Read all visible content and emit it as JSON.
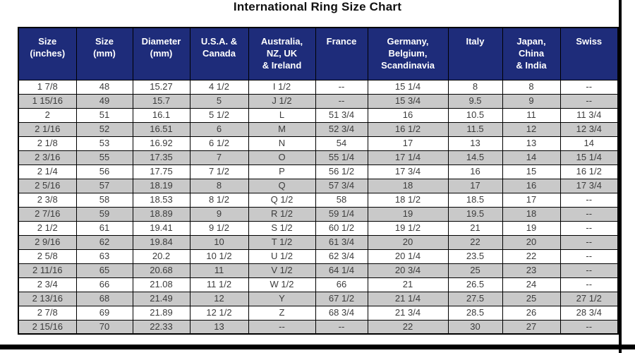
{
  "page": {
    "title": "International Ring Size Chart"
  },
  "colors": {
    "header_bg": "#1e2c7a",
    "header_text": "#ffffff",
    "row_bg": "#ffffff",
    "row_alt_bg": "#c9c9c9",
    "border": "#000000"
  },
  "chart_data": {
    "type": "table",
    "title": "International Ring Size Chart",
    "columns": [
      "Size\n(inches)",
      "Size\n(mm)",
      "Diameter\n(mm)",
      "U.S.A. &\nCanada",
      "Australia,\nNZ, UK\n& Ireland",
      "France",
      "Germany,\nBelgium,\nScandinavia",
      "Italy",
      "Japan,\nChina\n& India",
      "Swiss"
    ],
    "rows": [
      [
        "1 7/8",
        "48",
        "15.27",
        "4 1/2",
        "I 1/2",
        "--",
        "15 1/4",
        "8",
        "8",
        "--"
      ],
      [
        "1 15/16",
        "49",
        "15.7",
        "5",
        "J 1/2",
        "--",
        "15 3/4",
        "9.5",
        "9",
        "--"
      ],
      [
        "2",
        "51",
        "16.1",
        "5 1/2",
        "L",
        "51 3/4",
        "16",
        "10.5",
        "11",
        "11 3/4"
      ],
      [
        "2 1/16",
        "52",
        "16.51",
        "6",
        "M",
        "52 3/4",
        "16 1/2",
        "11.5",
        "12",
        "12 3/4"
      ],
      [
        "2 1/8",
        "53",
        "16.92",
        "6 1/2",
        "N",
        "54",
        "17",
        "13",
        "13",
        "14"
      ],
      [
        "2 3/16",
        "55",
        "17.35",
        "7",
        "O",
        "55 1/4",
        "17 1/4",
        "14.5",
        "14",
        "15 1/4"
      ],
      [
        "2 1/4",
        "56",
        "17.75",
        "7 1/2",
        "P",
        "56 1/2",
        "17 3/4",
        "16",
        "15",
        "16 1/2"
      ],
      [
        "2 5/16",
        "57",
        "18.19",
        "8",
        "Q",
        "57 3/4",
        "18",
        "17",
        "16",
        "17 3/4"
      ],
      [
        "2 3/8",
        "58",
        "18.53",
        "8 1/2",
        "Q 1/2",
        "58",
        "18 1/2",
        "18.5",
        "17",
        "--"
      ],
      [
        "2 7/16",
        "59",
        "18.89",
        "9",
        "R 1/2",
        "59 1/4",
        "19",
        "19.5",
        "18",
        "--"
      ],
      [
        "2 1/2",
        "61",
        "19.41",
        "9 1/2",
        "S 1/2",
        "60 1/2",
        "19 1/2",
        "21",
        "19",
        "--"
      ],
      [
        "2 9/16",
        "62",
        "19.84",
        "10",
        "T 1/2",
        "61 3/4",
        "20",
        "22",
        "20",
        "--"
      ],
      [
        "2 5/8",
        "63",
        "20.2",
        "10 1/2",
        "U 1/2",
        "62 3/4",
        "20 1/4",
        "23.5",
        "22",
        "--"
      ],
      [
        "2 11/16",
        "65",
        "20.68",
        "11",
        "V 1/2",
        "64 1/4",
        "20 3/4",
        "25",
        "23",
        "--"
      ],
      [
        "2 3/4",
        "66",
        "21.08",
        "11 1/2",
        "W 1/2",
        "66",
        "21",
        "26.5",
        "24",
        "--"
      ],
      [
        "2 13/16",
        "68",
        "21.49",
        "12",
        "Y",
        "67 1/2",
        "21 1/4",
        "27.5",
        "25",
        "27 1/2"
      ],
      [
        "2 7/8",
        "69",
        "21.89",
        "12 1/2",
        "Z",
        "68 3/4",
        "21 3/4",
        "28.5",
        "26",
        "28 3/4"
      ],
      [
        "2 15/16",
        "70",
        "22.33",
        "13",
        "--",
        "--",
        "22",
        "30",
        "27",
        "--"
      ]
    ]
  }
}
